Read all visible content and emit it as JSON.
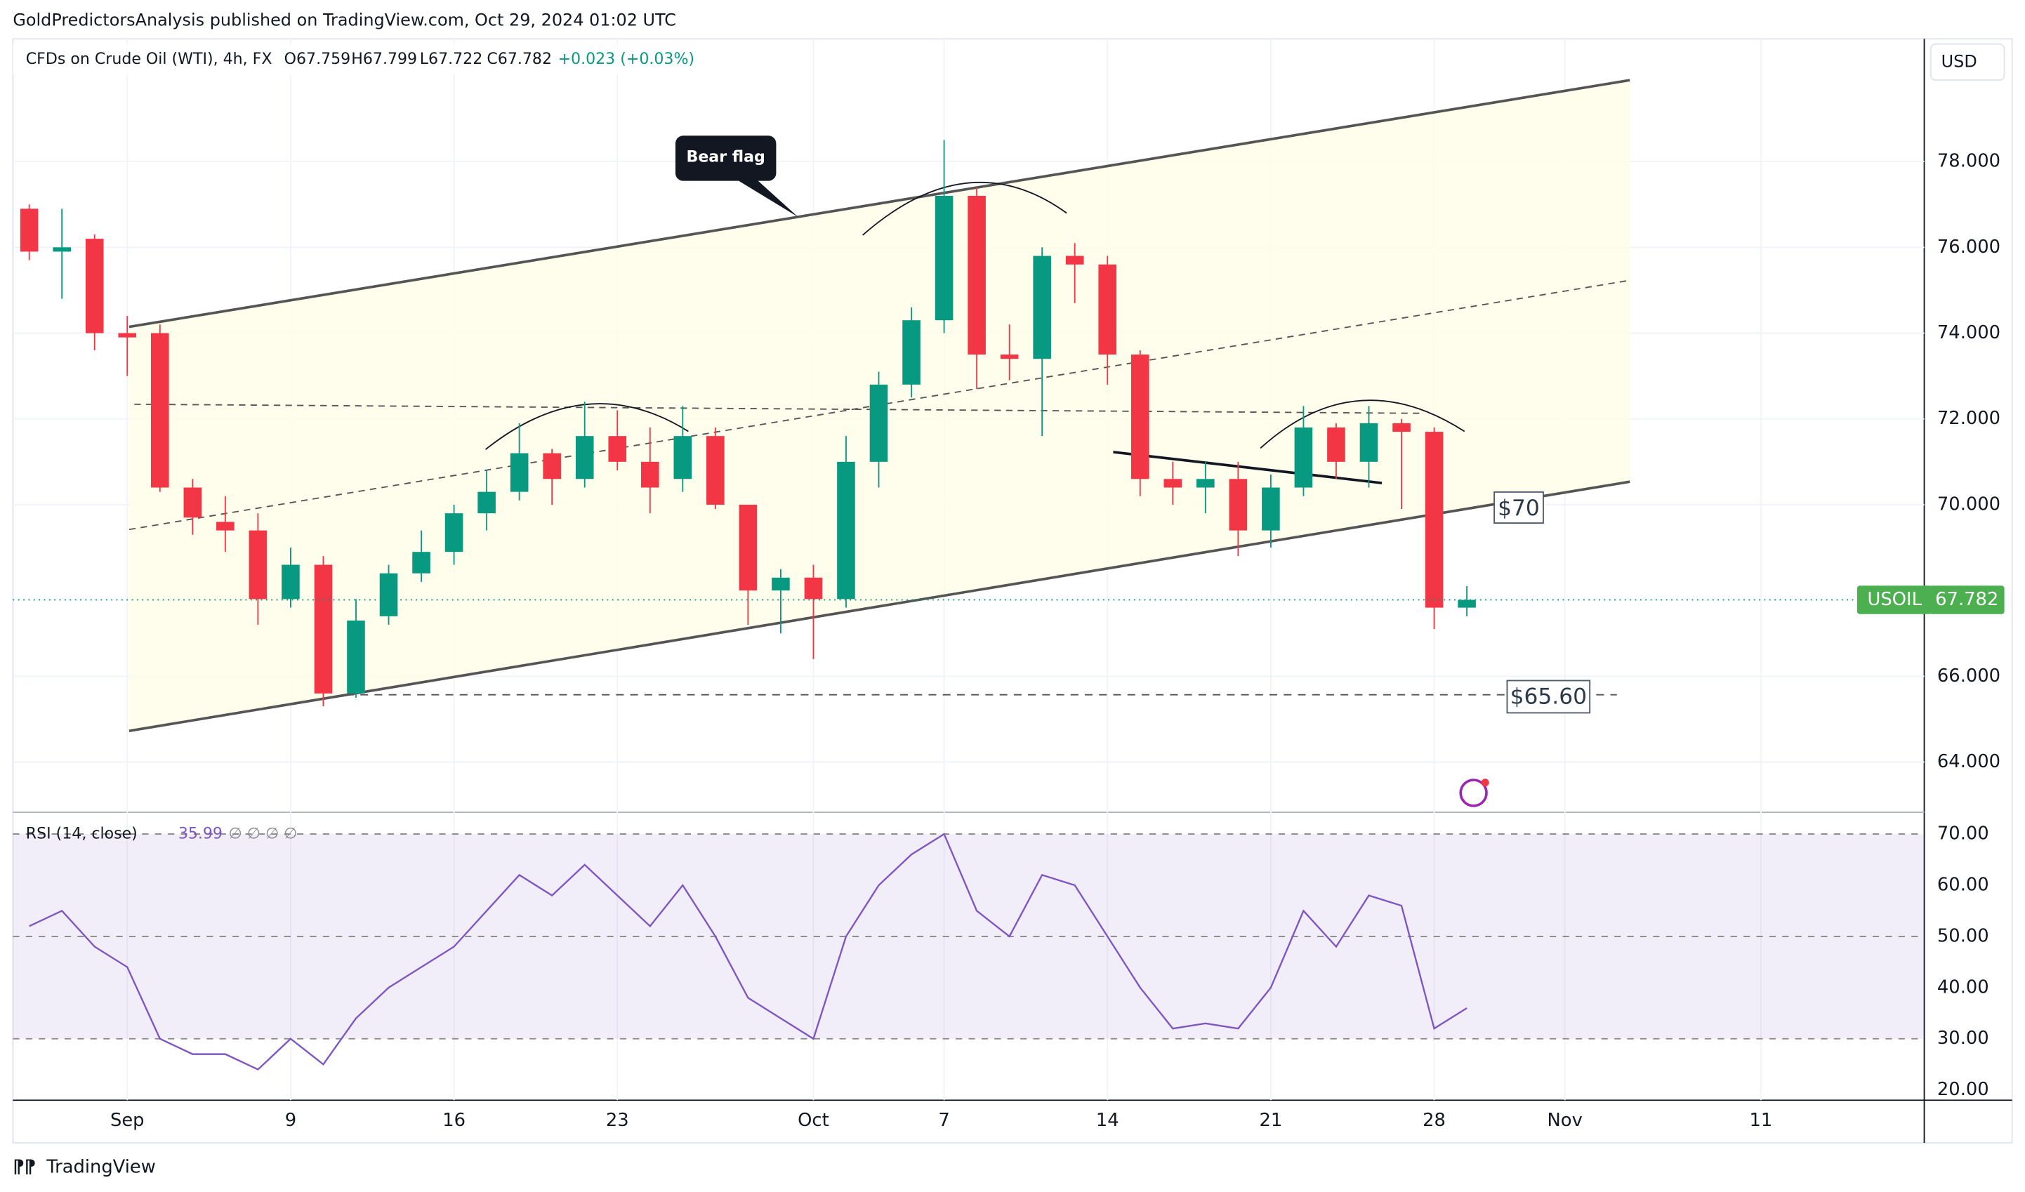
{
  "header": {
    "published": "GoldPredictorsAnalysis published on TradingView.com, Oct 29, 2024 01:02 UTC",
    "footer": "TradingView"
  },
  "chart_data": [
    {
      "type": "candlestick",
      "title": "CFDs on Crude Oil (WTI), 4h, FX",
      "ohlc_legend": [
        "O67.759",
        "H67.799",
        "L67.722",
        "C67.782",
        "+0.023 (+0.03%)"
      ],
      "currency": "USD",
      "symbol": "USOIL",
      "last_label": "67.782",
      "annotations": [
        "Bear flag",
        "$70",
        "$65.60"
      ],
      "up_color": "#089981",
      "down_color": "#f23645",
      "x": [
        0,
        1,
        2,
        3,
        4,
        5,
        6,
        7,
        8,
        9,
        10,
        11,
        12,
        13,
        14,
        15,
        16,
        17,
        18,
        19,
        20,
        21,
        22,
        23,
        24,
        25,
        26,
        27,
        28,
        29,
        30,
        31,
        32,
        33,
        34,
        35,
        36,
        37,
        38,
        39,
        40,
        41,
        42,
        43,
        44
      ],
      "open": [
        76.9,
        75.9,
        76.2,
        74.0,
        74.0,
        70.4,
        69.6,
        69.4,
        67.8,
        68.6,
        65.6,
        67.4,
        68.4,
        68.9,
        69.8,
        70.3,
        71.2,
        70.6,
        71.6,
        71.0,
        70.6,
        71.6,
        70.0,
        68.0,
        68.3,
        67.8,
        71.0,
        72.8,
        74.3,
        77.2,
        73.5,
        73.4,
        75.8,
        75.6,
        73.5,
        70.6,
        70.4,
        70.6,
        69.4,
        70.4,
        71.8,
        71.0,
        71.9,
        71.7,
        67.6
      ],
      "high": [
        77.0,
        76.9,
        76.3,
        74.4,
        74.2,
        70.6,
        70.2,
        69.8,
        69.0,
        68.8,
        67.8,
        68.6,
        69.4,
        70.0,
        70.8,
        71.9,
        71.3,
        72.4,
        72.2,
        71.8,
        72.3,
        71.8,
        70.0,
        68.5,
        68.6,
        71.6,
        73.1,
        74.6,
        78.5,
        77.4,
        74.2,
        76.0,
        76.1,
        75.8,
        73.6,
        71.0,
        71.0,
        71.0,
        70.7,
        72.3,
        71.9,
        72.3,
        72.0,
        71.8,
        68.1
      ],
      "low": [
        75.7,
        74.8,
        73.6,
        73.0,
        70.3,
        69.3,
        68.9,
        67.2,
        67.6,
        65.3,
        65.5,
        67.2,
        68.2,
        68.6,
        69.4,
        70.1,
        70.0,
        70.4,
        70.8,
        69.8,
        70.3,
        69.9,
        67.2,
        67.0,
        66.4,
        67.6,
        70.4,
        72.5,
        74.0,
        72.7,
        72.9,
        71.6,
        74.7,
        72.8,
        70.2,
        70.0,
        69.8,
        68.8,
        69.0,
        70.2,
        70.6,
        70.4,
        69.9,
        67.1,
        67.4
      ],
      "close": [
        75.9,
        76.0,
        74.0,
        73.9,
        70.4,
        69.7,
        69.4,
        67.8,
        68.6,
        65.6,
        67.3,
        68.4,
        68.9,
        69.8,
        70.3,
        71.2,
        70.6,
        71.6,
        71.0,
        70.4,
        71.6,
        70.0,
        68.0,
        68.3,
        67.8,
        71.0,
        72.8,
        74.3,
        77.2,
        73.5,
        73.4,
        75.8,
        75.6,
        73.5,
        70.6,
        70.4,
        70.6,
        69.4,
        70.4,
        71.8,
        71.0,
        71.9,
        71.7,
        67.6,
        67.782
      ],
      "xlim": [
        -0.5,
        58
      ],
      "xticks": [
        {
          "value": 3,
          "label": "Sep"
        },
        {
          "value": 8,
          "label": "9"
        },
        {
          "value": 13,
          "label": "16"
        },
        {
          "value": 18,
          "label": "23"
        },
        {
          "value": 24,
          "label": "Oct"
        },
        {
          "value": 28,
          "label": "7"
        },
        {
          "value": 33,
          "label": "14"
        },
        {
          "value": 38,
          "label": "21"
        },
        {
          "value": 43,
          "label": "28"
        },
        {
          "value": 47,
          "label": "Nov"
        },
        {
          "value": 53,
          "label": "11"
        }
      ],
      "ylim": [
        62.86,
        80.86
      ],
      "yticks": [
        {
          "value": 64,
          "label": "64.000"
        },
        {
          "value": 66,
          "label": "66.000"
        },
        {
          "value": 70,
          "label": "70.000"
        },
        {
          "value": 72,
          "label": "72.000"
        },
        {
          "value": 74,
          "label": "74.000"
        },
        {
          "value": 76,
          "label": "76.000"
        },
        {
          "value": 78,
          "label": "78.000"
        }
      ]
    },
    {
      "type": "line",
      "title": "RSI (14, close)",
      "value_label": "35.99",
      "extras": "∅ ∅ ∅ ∅",
      "color": "#7e57c2",
      "values": [
        52,
        55,
        48,
        44,
        30,
        27,
        27,
        24,
        30,
        25,
        34,
        40,
        44,
        48,
        55,
        62,
        58,
        64,
        58,
        52,
        60,
        50,
        38,
        34,
        30,
        50,
        60,
        66,
        70,
        55,
        50,
        62,
        60,
        50,
        40,
        32,
        33,
        32,
        40,
        55,
        48,
        58,
        56,
        32,
        36
      ],
      "bands": [
        30,
        50,
        70
      ],
      "ylim": [
        18,
        74
      ],
      "yticks": [
        {
          "value": 20,
          "label": "20.00"
        },
        {
          "value": 30,
          "label": "30.00"
        },
        {
          "value": 40,
          "label": "40.00"
        },
        {
          "value": 50,
          "label": "50.00"
        },
        {
          "value": 60,
          "label": "60.00"
        },
        {
          "value": 70,
          "label": "70.00"
        }
      ]
    }
  ]
}
